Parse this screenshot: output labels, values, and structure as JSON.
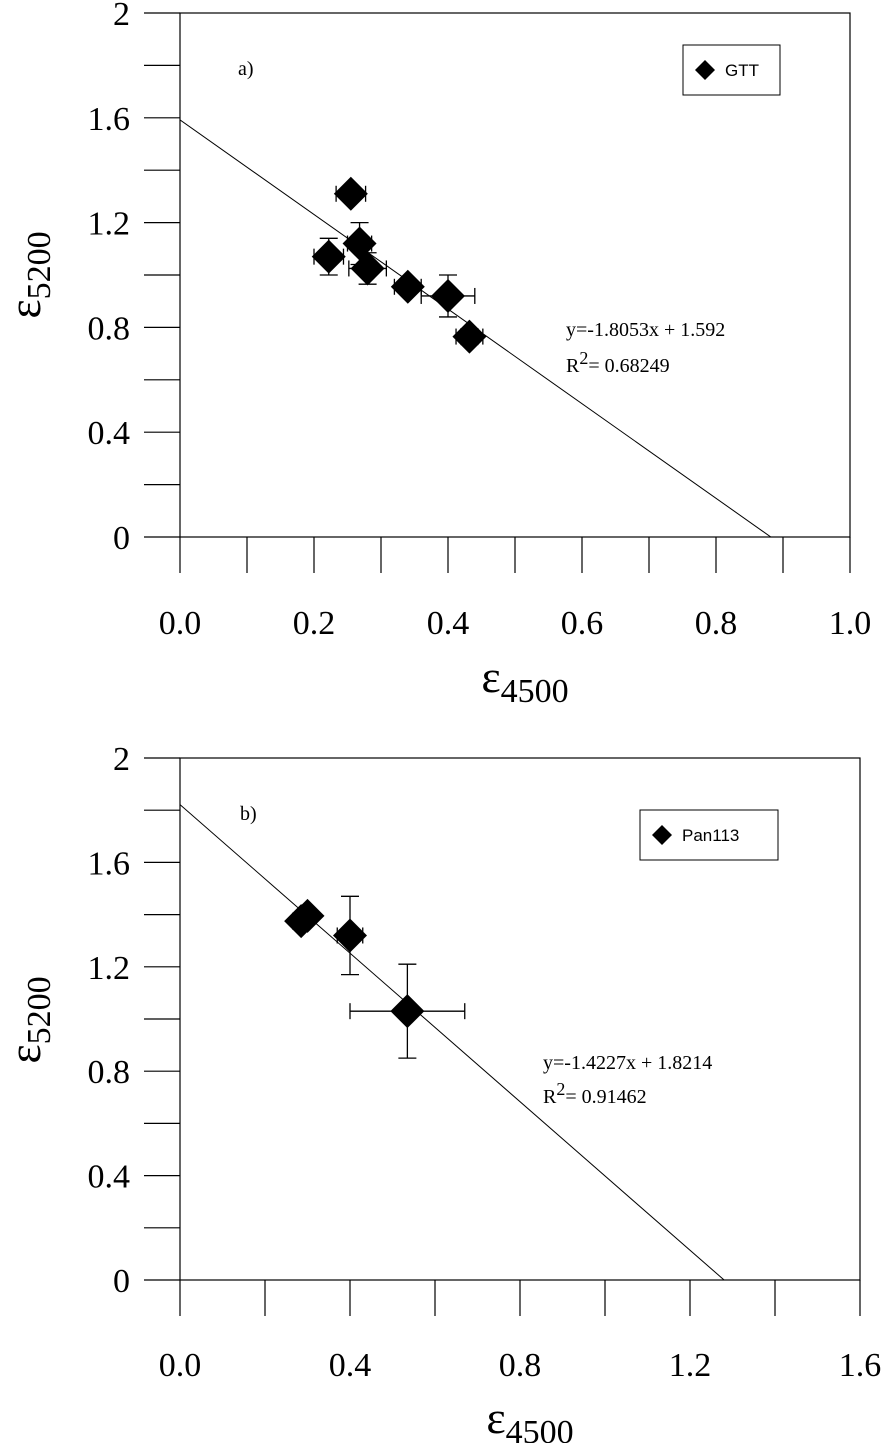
{
  "chart_data": [
    {
      "type": "scatter",
      "panel_label": "a)",
      "xlim": [
        0.0,
        1.0
      ],
      "ylim": [
        0,
        2
      ],
      "x_ticks": [
        0.0,
        0.2,
        0.4,
        0.6,
        0.8,
        1.0
      ],
      "x_tick_labels": [
        "0.0",
        "0.2",
        "0.4",
        "0.6",
        "0.8",
        "1.0"
      ],
      "x_minor_step": 0.1,
      "y_ticks": [
        0,
        0.4,
        0.8,
        1.2,
        1.6,
        2
      ],
      "y_tick_labels": [
        "0",
        "0.4",
        "0.8",
        "1.2",
        "1.6",
        "2"
      ],
      "y_minor_step": 0.2,
      "xlabel_main": "ε",
      "xlabel_sub": "4500",
      "ylabel_main": "ε",
      "ylabel_sub": "5200",
      "legend": {
        "label": "GTT",
        "position": "top-right"
      },
      "series": [
        {
          "name": "GTT",
          "marker": "diamond",
          "points": [
            {
              "x": 0.255,
              "y": 1.31,
              "xerr": 0.022,
              "yerr": 0.02
            },
            {
              "x": 0.268,
              "y": 1.12,
              "xerr": 0.018,
              "yerr": 0.08
            },
            {
              "x": 0.222,
              "y": 1.07,
              "xerr": 0.022,
              "yerr": 0.07
            },
            {
              "x": 0.28,
              "y": 1.025,
              "xerr": 0.028,
              "yerr": 0.06
            },
            {
              "x": 0.34,
              "y": 0.955,
              "xerr": 0.02,
              "yerr": 0.02
            },
            {
              "x": 0.4,
              "y": 0.92,
              "xerr": 0.04,
              "yerr": 0.08
            },
            {
              "x": 0.432,
              "y": 0.765,
              "xerr": 0.02,
              "yerr": 0.03
            }
          ]
        }
      ],
      "fit": {
        "slope": -1.8053,
        "intercept": 1.592
      },
      "fit_equation": "y=-1.8053x + 1.592",
      "r2_prefix": "R",
      "r2_sup": "2",
      "r2_value": "= 0.68249"
    },
    {
      "type": "scatter",
      "panel_label": "b)",
      "xlim": [
        0.0,
        1.6
      ],
      "ylim": [
        0,
        2
      ],
      "x_ticks": [
        0.0,
        0.4,
        0.8,
        1.2,
        1.6
      ],
      "x_tick_labels": [
        "0.0",
        "0.4",
        "0.8",
        "1.2",
        "1.6"
      ],
      "x_minor_step": 0.2,
      "y_ticks": [
        0,
        0.4,
        0.8,
        1.2,
        1.6,
        2
      ],
      "y_tick_labels": [
        "0",
        "0.4",
        "0.8",
        "1.2",
        "1.6",
        "2"
      ],
      "y_minor_step": 0.2,
      "xlabel_main": "ε",
      "xlabel_sub": "4500",
      "ylabel_main": "ε",
      "ylabel_sub": "5200",
      "legend": {
        "label": "Pan113",
        "position": "top-right"
      },
      "series": [
        {
          "name": "Pan113",
          "marker": "diamond",
          "points": [
            {
              "x": 0.285,
              "y": 1.375,
              "xerr": 0.02,
              "yerr": 0.03
            },
            {
              "x": 0.3,
              "y": 1.395,
              "xerr": 0.015,
              "yerr": 0.02
            },
            {
              "x": 0.4,
              "y": 1.32,
              "xerr": 0.03,
              "yerr": 0.15
            },
            {
              "x": 0.535,
              "y": 1.03,
              "xerr": 0.135,
              "yerr": 0.18
            }
          ]
        }
      ],
      "fit": {
        "slope": -1.4227,
        "intercept": 1.8214
      },
      "fit_equation": "y=-1.4227x + 1.8214",
      "r2_prefix": "R",
      "r2_sup": "2",
      "r2_value": "= 0.91462"
    }
  ]
}
